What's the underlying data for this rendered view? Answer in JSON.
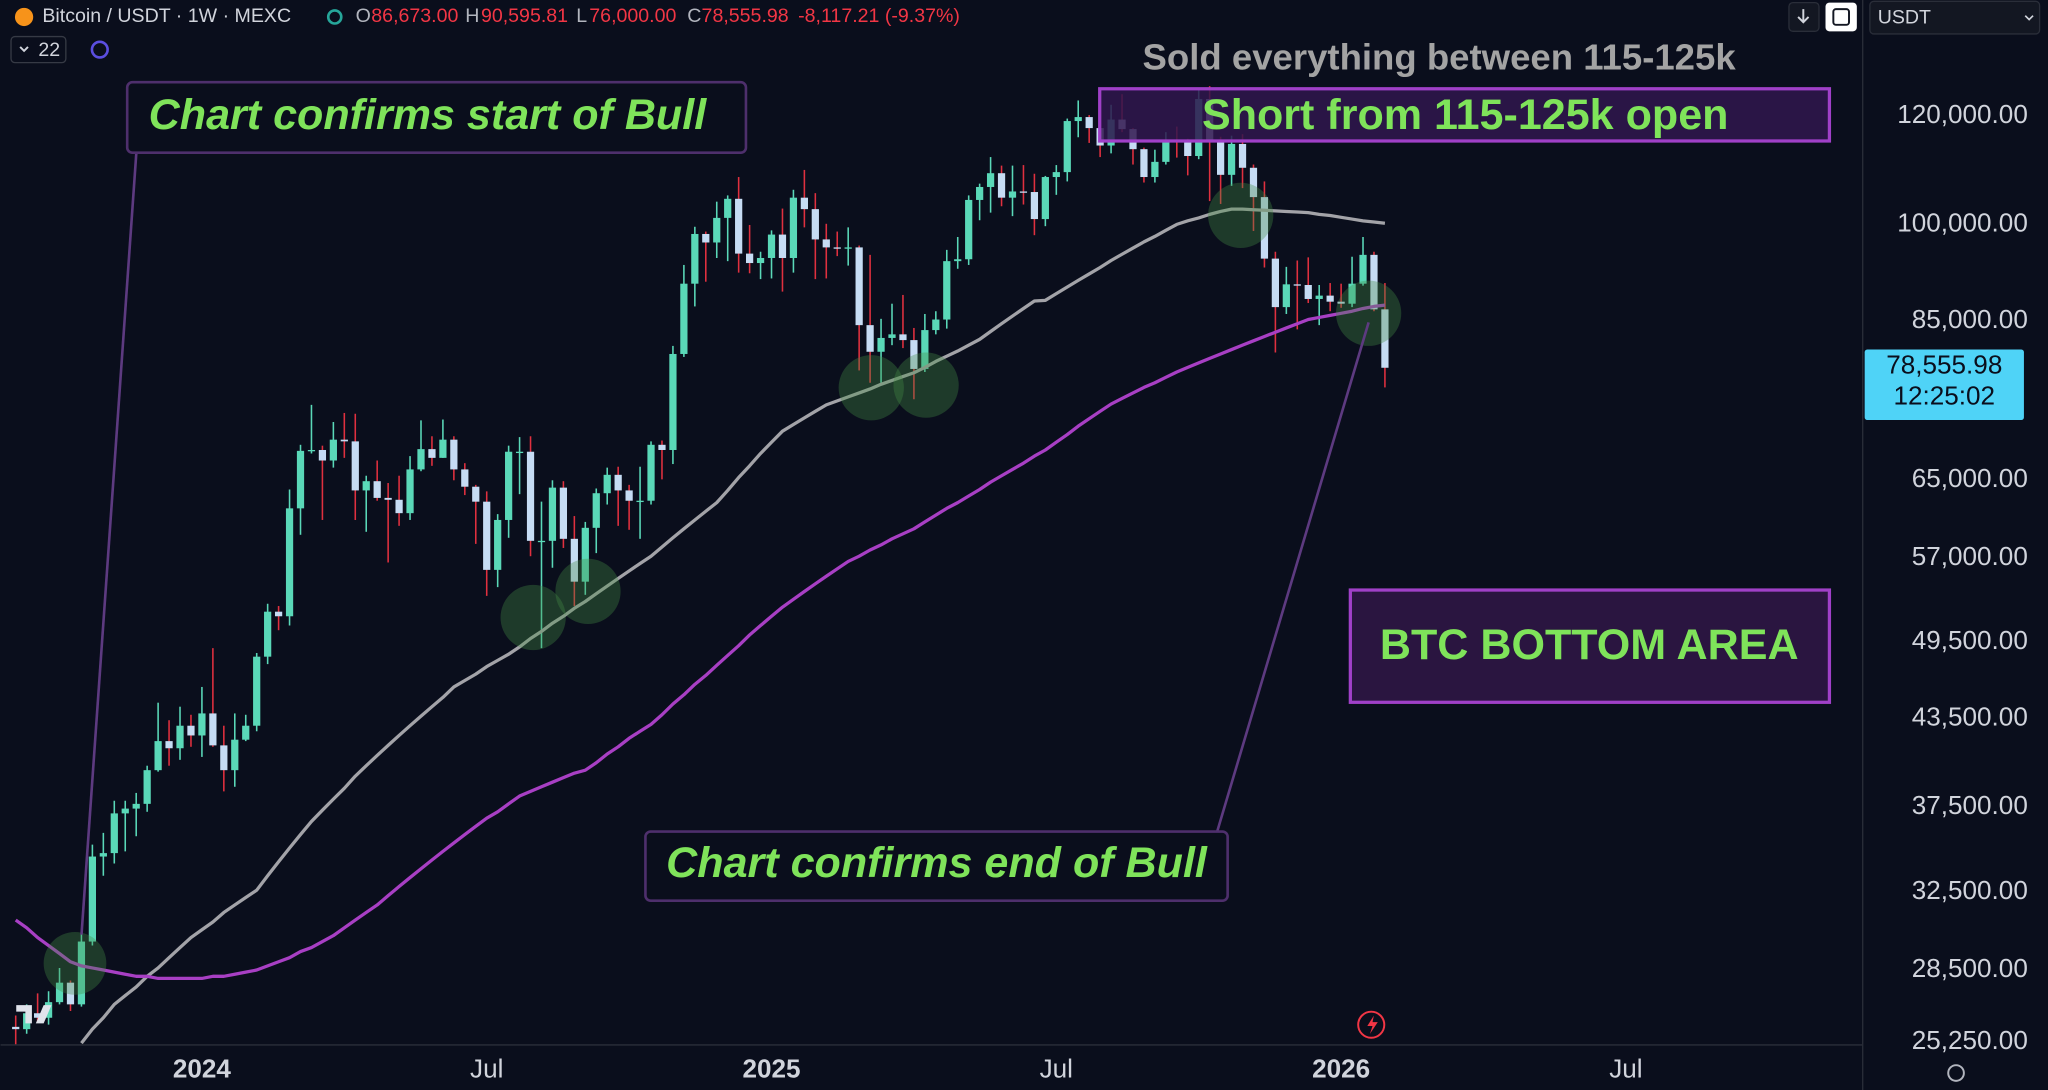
{
  "header": {
    "symbol": "Bitcoin / USDT · 1W · MEXC",
    "o": "O",
    "open": "86,673.00",
    "h": "H",
    "high": "90,595.81",
    "l": "L",
    "low": "76,000.00",
    "c": "C",
    "close": "78,555.98",
    "change": "-8,117.21 (-9.37%)",
    "indicator_count": "22",
    "currency": "USDT"
  },
  "annotations": {
    "start_bull": "Chart confirms start of Bull",
    "sold": "Sold everything between 115-125k",
    "short": "Short from 115-125k open",
    "bottom": "BTC BOTTOM AREA",
    "end_bull": "Chart confirms end of Bull"
  },
  "chart_data": {
    "type": "candlestick",
    "log_scale": true,
    "grid": false,
    "ylim": [
      25150,
      145900
    ],
    "yticks": [
      {
        "value": 120000,
        "label": "120,000.00"
      },
      {
        "value": 100000,
        "label": "100,000.00"
      },
      {
        "value": 85000,
        "label": "85,000.00"
      },
      {
        "value": 65000,
        "label": "65,000.00"
      },
      {
        "value": 57000,
        "label": "57,000.00"
      },
      {
        "value": 49500,
        "label": "49,500.00"
      },
      {
        "value": 43500,
        "label": "43,500.00"
      },
      {
        "value": 37500,
        "label": "37,500.00"
      },
      {
        "value": 32500,
        "label": "32,500.00"
      },
      {
        "value": 28500,
        "label": "28,500.00"
      },
      {
        "value": 25250,
        "label": "25,250.00"
      }
    ],
    "categories": [
      null,
      null,
      null,
      null,
      null,
      null,
      null,
      null,
      null,
      null,
      null,
      null,
      null,
      null,
      null,
      null,
      null,
      "2024",
      null,
      null,
      null,
      null,
      null,
      null,
      null,
      null,
      null,
      null,
      null,
      null,
      null,
      null,
      null,
      null,
      null,
      null,
      null,
      null,
      null,
      null,
      null,
      null,
      null,
      "Jul",
      null,
      null,
      null,
      null,
      null,
      null,
      null,
      null,
      null,
      null,
      null,
      null,
      null,
      null,
      null,
      null,
      null,
      null,
      null,
      null,
      null,
      null,
      null,
      null,
      null,
      "2025",
      null,
      null,
      null,
      null,
      null,
      null,
      null,
      null,
      null,
      null,
      null,
      null,
      null,
      null,
      null,
      null,
      null,
      null,
      null,
      null,
      null,
      null,
      null,
      null,
      null,
      "Jul",
      null,
      null,
      null,
      null,
      null,
      null,
      null,
      null,
      null,
      null,
      null,
      null,
      null,
      null,
      null,
      null,
      null,
      null,
      null,
      null,
      null,
      null,
      null,
      null,
      null,
      "2026",
      null,
      null,
      null,
      null,
      null,
      null,
      null,
      null,
      null,
      null,
      null,
      null,
      null,
      null,
      null,
      null,
      null,
      null,
      null,
      null,
      null,
      null,
      null,
      null,
      null,
      "Jul",
      null,
      null,
      null,
      null,
      null,
      null,
      null,
      null,
      null,
      null,
      null,
      null,
      null,
      null,
      null,
      null,
      null,
      null,
      null,
      null,
      null
    ],
    "up_color": "#5ad8b8",
    "down_color": "#c6dcf4",
    "down_wick_color": "#e0303f",
    "open": [
      25900,
      25800,
      26500,
      26300,
      27000,
      27900,
      26900,
      29900,
      34500,
      34700,
      37100,
      37400,
      37700,
      39900,
      41900,
      41400,
      43000,
      42300,
      43900,
      41600,
      39900,
      42000,
      43000,
      48300,
      52100,
      51700,
      62000,
      68300,
      68400,
      67200,
      69600,
      69400,
      63900,
      64900,
      63100,
      62900,
      61500,
      66200,
      68500,
      67500,
      69600,
      66200,
      64300,
      62700,
      55900,
      60800,
      68200,
      68200,
      58700,
      58700,
      64200,
      58900,
      54800,
      60000,
      63600,
      65600,
      63900,
      62800,
      62800,
      69000,
      68400,
      80400,
      90500,
      98400,
      97000,
      101100,
      104400,
      95200,
      93700,
      94500,
      98300,
      94500,
      104600,
      102600,
      97500,
      96200,
      96100,
      96200,
      84400,
      80700,
      82600,
      83100,
      82300,
      78400,
      83700,
      85200,
      94000,
      94300,
      104200,
      106500,
      109000,
      104600,
      105700,
      105600,
      100900,
      108300,
      109200,
      119000,
      119800,
      117600,
      114200,
      119300,
      117400,
      113500,
      108300,
      111100,
      115300,
      115200,
      112200,
      123500,
      115100,
      108700,
      114500,
      110000,
      104700,
      94400,
      87000,
      90400,
      90300,
      88200,
      88700,
      87800,
      87500,
      90500,
      95000,
      86673,
      null,
      null,
      null,
      null,
      null,
      null,
      null,
      null,
      null,
      null,
      null,
      null,
      null,
      null,
      null,
      null,
      null,
      null,
      null,
      null,
      null,
      null,
      null,
      null,
      null,
      null,
      null,
      null,
      null,
      null,
      null,
      null,
      null,
      null,
      null,
      null,
      null,
      null,
      null,
      null,
      null,
      null,
      null
    ],
    "high": [
      26400,
      26900,
      27400,
      27500,
      28600,
      28000,
      30400,
      35200,
      35900,
      37900,
      37900,
      38400,
      40200,
      44700,
      43400,
      44400,
      43800,
      45900,
      49000,
      43000,
      43900,
      43800,
      48600,
      52800,
      52600,
      64000,
      69000,
      73800,
      68900,
      71700,
      72800,
      72700,
      65500,
      67200,
      64700,
      65500,
      67700,
      71900,
      70000,
      72000,
      70000,
      66900,
      64500,
      63800,
      61400,
      68900,
      69900,
      70000,
      62700,
      65000,
      64900,
      61200,
      60600,
      64100,
      66400,
      66500,
      64500,
      66500,
      69400,
      69500,
      81500,
      93400,
      99600,
      98800,
      103900,
      105000,
      108300,
      99900,
      95500,
      99000,
      102700,
      106000,
      109600,
      105400,
      100100,
      98800,
      99500,
      96500,
      95000,
      85300,
      87500,
      88800,
      84000,
      86000,
      86400,
      95800,
      97900,
      105000,
      107100,
      112000,
      110400,
      110400,
      110500,
      108900,
      108500,
      110500,
      119500,
      123200,
      120200,
      119300,
      122300,
      124500,
      117600,
      113800,
      113400,
      116800,
      117900,
      115500,
      125600,
      126200,
      115900,
      116100,
      116400,
      110600,
      107500,
      95500,
      93100,
      94100,
      94600,
      90300,
      90600,
      90500,
      94700,
      97900,
      95500,
      90595.81,
      null,
      null,
      null,
      null,
      null,
      null,
      null,
      null,
      null,
      null,
      null,
      null,
      null,
      null,
      null,
      null,
      null,
      null,
      null,
      null,
      null,
      null,
      null,
      null,
      null,
      null,
      null,
      null,
      null,
      null,
      null,
      null,
      null,
      null,
      null,
      null,
      null,
      null,
      null,
      null,
      null,
      null,
      null
    ],
    "low": [
      24900,
      25600,
      26100,
      26000,
      26900,
      26600,
      26800,
      29700,
      33400,
      34100,
      34800,
      35700,
      37200,
      39800,
      40200,
      40600,
      41500,
      40800,
      41500,
      38500,
      38800,
      41900,
      42600,
      47700,
      50500,
      50900,
      59300,
      68000,
      60800,
      66400,
      67500,
      60800,
      59600,
      62800,
      56600,
      60200,
      60800,
      66000,
      66600,
      67500,
      65000,
      63400,
      58400,
      53500,
      54300,
      59000,
      63500,
      57200,
      49000,
      56100,
      58000,
      52600,
      53600,
      57500,
      62400,
      60200,
      59800,
      58900,
      62400,
      65100,
      66800,
      80000,
      87100,
      90800,
      94500,
      94000,
      92200,
      92100,
      91200,
      91300,
      89300,
      92200,
      99500,
      91200,
      91300,
      94800,
      93300,
      78200,
      76600,
      76600,
      81600,
      81200,
      74500,
      78000,
      83100,
      83900,
      92800,
      93400,
      100700,
      102000,
      103100,
      101400,
      103400,
      98200,
      99700,
      105100,
      107500,
      115800,
      114700,
      112000,
      112700,
      116800,
      110600,
      107300,
      107300,
      110600,
      111900,
      108600,
      111600,
      104000,
      103500,
      106700,
      106300,
      98900,
      93000,
      80600,
      86000,
      83800,
      87600,
      84400,
      86400,
      86900,
      87000,
      90200,
      86400,
      76000,
      null,
      null,
      null,
      null,
      null,
      null,
      null,
      null,
      null,
      null,
      null,
      null,
      null,
      null,
      null,
      null,
      null,
      null,
      null,
      null,
      null,
      null,
      null,
      null,
      null,
      null,
      null,
      null,
      null,
      null,
      null,
      null,
      null,
      null,
      null,
      null,
      null,
      null,
      null,
      null,
      null,
      null,
      null
    ],
    "close": [
      25800,
      26500,
      26300,
      27000,
      27900,
      26900,
      29900,
      34500,
      34700,
      37100,
      37400,
      37700,
      39900,
      41900,
      41400,
      43000,
      42300,
      43900,
      41600,
      39900,
      42000,
      43000,
      48300,
      52100,
      51700,
      62000,
      68300,
      68400,
      67200,
      69600,
      69400,
      63900,
      64900,
      63100,
      62900,
      61500,
      66200,
      68500,
      67500,
      69600,
      66200,
      64300,
      62700,
      55900,
      60800,
      68200,
      68200,
      58700,
      58700,
      64200,
      58900,
      54800,
      60000,
      63600,
      65600,
      63900,
      62800,
      62800,
      69000,
      68400,
      80400,
      90500,
      98400,
      97000,
      101100,
      104400,
      95200,
      93700,
      94500,
      98300,
      94500,
      104600,
      102600,
      97500,
      96200,
      96100,
      96200,
      84400,
      80700,
      82600,
      83100,
      82300,
      78400,
      83700,
      85200,
      94000,
      94300,
      104200,
      106500,
      109000,
      104600,
      105700,
      105600,
      100900,
      108300,
      109200,
      119000,
      119800,
      117600,
      114200,
      119300,
      117400,
      113500,
      108300,
      111100,
      115300,
      115200,
      112200,
      123500,
      115100,
      108700,
      114500,
      110000,
      104700,
      94400,
      87000,
      90400,
      90300,
      88200,
      88700,
      87800,
      87500,
      90500,
      95000,
      86673,
      78555.98,
      null,
      null,
      null,
      null,
      null,
      null,
      null,
      null,
      null,
      null,
      null,
      null,
      null,
      null,
      null,
      null,
      null,
      null,
      null,
      null,
      null,
      null,
      null,
      null,
      null,
      null,
      null,
      null,
      null,
      null,
      null,
      null,
      null,
      null,
      null,
      null,
      null,
      null,
      null,
      null,
      null,
      null,
      null
    ],
    "series": [
      {
        "color": "#a3a3a8",
        "values": [
          null,
          null,
          null,
          null,
          null,
          null,
          25200,
          25800,
          26300,
          26900,
          27300,
          27700,
          28200,
          28600,
          29100,
          29600,
          30100,
          30500,
          30900,
          31400,
          31800,
          32200,
          32600,
          33400,
          34200,
          35000,
          35800,
          36600,
          37300,
          38000,
          38700,
          39500,
          40200,
          40900,
          41600,
          42300,
          43000,
          43700,
          44400,
          45100,
          45900,
          46400,
          46900,
          47500,
          48000,
          48500,
          49100,
          49800,
          50400,
          51100,
          51700,
          52400,
          53000,
          53700,
          54400,
          55100,
          55800,
          56500,
          57200,
          58100,
          59000,
          59900,
          60800,
          61700,
          62600,
          63900,
          65300,
          66600,
          68000,
          69300,
          70600,
          71400,
          72200,
          73000,
          73800,
          74300,
          74800,
          75300,
          75800,
          76400,
          76900,
          77400,
          77900,
          78600,
          79400,
          80100,
          80800,
          81600,
          82400,
          83500,
          84600,
          85700,
          86800,
          87900,
          88000,
          89000,
          90000,
          91000,
          92000,
          93000,
          94100,
          95100,
          96100,
          97100,
          98000,
          99000,
          100000,
          100600,
          101100,
          101700,
          102200,
          102600,
          102600,
          102500,
          102400,
          102300,
          102200,
          102100,
          102000,
          101700,
          101500,
          101200,
          100900,
          100600,
          100400,
          100200,
          null,
          null,
          null,
          null,
          null,
          null,
          null,
          null,
          null,
          null,
          null,
          null,
          null,
          null,
          null,
          null,
          null,
          null,
          null,
          null,
          null,
          null,
          null,
          null,
          null,
          null,
          null,
          null,
          null,
          null,
          null,
          null,
          null,
          null,
          null,
          null,
          null,
          null,
          null,
          null,
          null,
          null,
          null
        ]
      },
      {
        "color": "#a83fc4",
        "values": [
          31000,
          30600,
          30100,
          29700,
          29300,
          28900,
          28700,
          28600,
          28500,
          28400,
          28300,
          28200,
          28200,
          28100,
          28100,
          28100,
          28100,
          28100,
          28200,
          28200,
          28300,
          28400,
          28500,
          28700,
          28900,
          29100,
          29400,
          29600,
          29900,
          30200,
          30600,
          31000,
          31400,
          31800,
          32300,
          32800,
          33300,
          33800,
          34300,
          34800,
          35300,
          35800,
          36300,
          36800,
          37200,
          37700,
          38200,
          38500,
          38800,
          39100,
          39400,
          39700,
          39900,
          40400,
          41000,
          41500,
          42100,
          42600,
          43100,
          43800,
          44600,
          45300,
          46100,
          46800,
          47600,
          48400,
          49200,
          50100,
          50900,
          51700,
          52500,
          53200,
          53900,
          54600,
          55300,
          56000,
          56700,
          57200,
          57800,
          58300,
          58900,
          59400,
          59900,
          60600,
          61300,
          62000,
          62600,
          63300,
          64000,
          64800,
          65500,
          66200,
          66900,
          67700,
          68400,
          69300,
          70200,
          71200,
          72100,
          73000,
          73900,
          74600,
          75300,
          76000,
          76600,
          77300,
          78000,
          78600,
          79200,
          79800,
          80400,
          81000,
          81600,
          82200,
          82800,
          83400,
          84000,
          84600,
          85200,
          85500,
          85800,
          86100,
          86400,
          86800,
          87100,
          87300,
          null,
          null,
          null,
          null,
          null,
          null,
          null,
          null,
          null,
          null,
          null,
          null,
          null,
          null,
          null,
          null,
          null,
          null,
          null,
          null,
          null,
          null,
          null,
          null,
          null,
          null,
          null,
          null,
          null,
          null,
          null,
          null,
          null,
          null,
          null,
          null,
          null,
          null,
          null,
          null,
          null,
          null,
          null
        ]
      }
    ],
    "last_price_label": "78,555.98",
    "countdown": "12:25:02",
    "last_price_color": "#4fd3f7"
  }
}
